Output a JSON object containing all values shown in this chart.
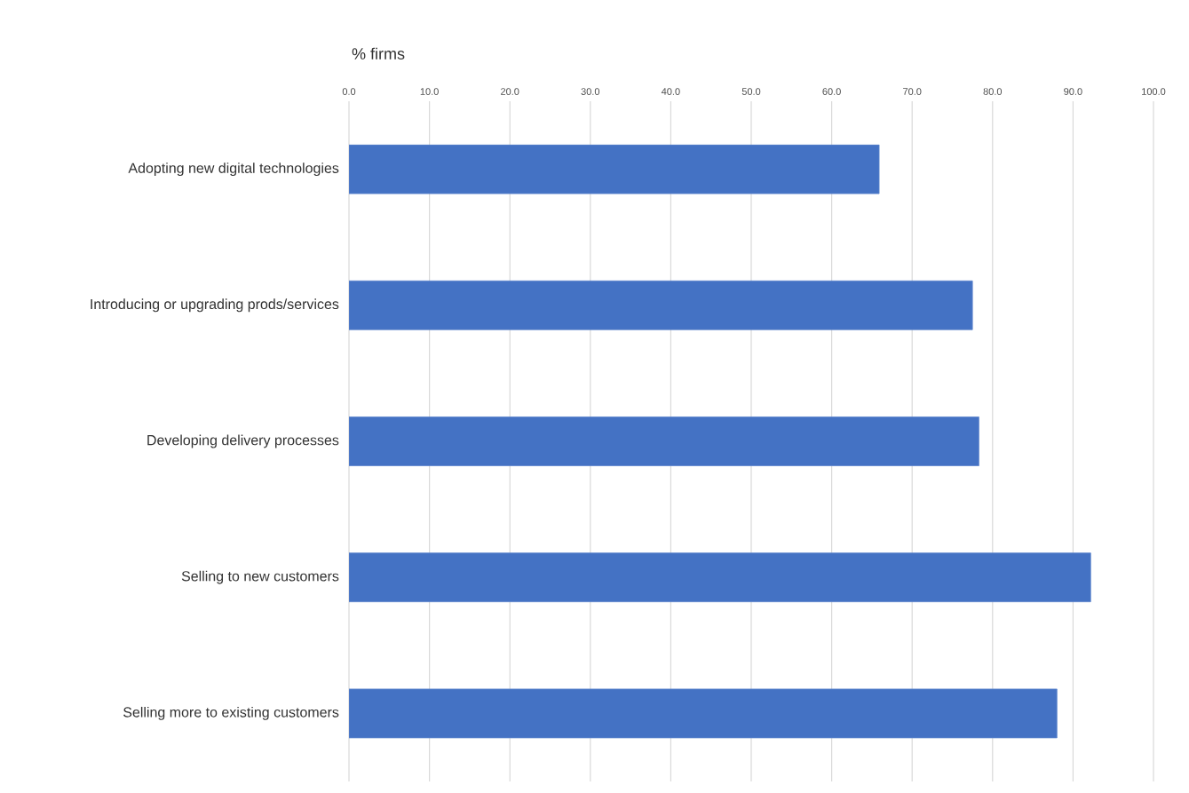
{
  "chart_data": {
    "type": "bar",
    "orientation": "horizontal",
    "xlabel": "% firms",
    "categories": [
      "Adopting new digital technologies",
      "Introducing or upgrading prods/services",
      "Developing delivery processes",
      "Selling to new customers",
      "Selling more to existing customers"
    ],
    "values": [
      65.9,
      77.5,
      78.3,
      92.2,
      88.0
    ],
    "color": "#4472c4",
    "xlim": [
      0,
      100
    ],
    "xticks": [
      {
        "value": 0,
        "label": "0.0"
      },
      {
        "value": 10,
        "label": "10.0"
      },
      {
        "value": 20,
        "label": "20.0"
      },
      {
        "value": 30,
        "label": "30.0"
      },
      {
        "value": 40,
        "label": "40.0"
      },
      {
        "value": 50,
        "label": "50.0"
      },
      {
        "value": 60,
        "label": "60.0"
      },
      {
        "value": 70,
        "label": "70.0"
      },
      {
        "value": 80,
        "label": "80.0"
      },
      {
        "value": 90,
        "label": "90.0"
      },
      {
        "value": 100,
        "label": "100.0"
      }
    ],
    "grid": "x"
  }
}
